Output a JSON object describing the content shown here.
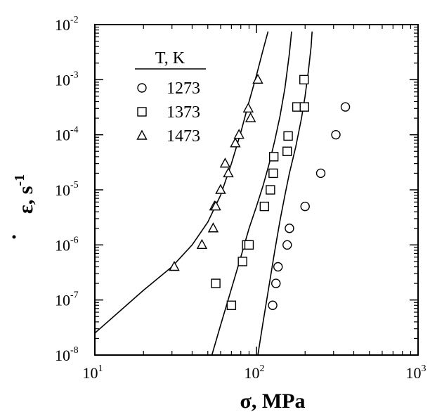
{
  "chart_data": {
    "type": "scatter",
    "x_scale": "log",
    "y_scale": "log",
    "xlim": [
      10,
      1000
    ],
    "ylim": [
      1e-08,
      0.01
    ],
    "x_ticks": [
      {
        "value": 10,
        "base": "10",
        "exp": "1"
      },
      {
        "value": 100,
        "base": "10",
        "exp": "2"
      },
      {
        "value": 1000,
        "base": "10",
        "exp": "3"
      }
    ],
    "y_ticks": [
      {
        "value": 1e-08,
        "base": "10",
        "exp": "-8"
      },
      {
        "value": 1e-07,
        "base": "10",
        "exp": "-7"
      },
      {
        "value": 1e-06,
        "base": "10",
        "exp": "-6"
      },
      {
        "value": 1e-05,
        "base": "10",
        "exp": "-5"
      },
      {
        "value": 0.0001,
        "base": "10",
        "exp": "-4"
      },
      {
        "value": 0.001,
        "base": "10",
        "exp": "-3"
      },
      {
        "value": 0.01,
        "base": "10",
        "exp": "-2"
      }
    ],
    "xlabel": {
      "symbol": "σ",
      "text": ", MPa"
    },
    "ylabel": {
      "symbol": "ε",
      "text": ", s",
      "exp": "-1"
    },
    "legend": {
      "title": "T, K",
      "position": "top-left"
    },
    "series": [
      {
        "name": "1273",
        "marker": "circle",
        "points": [
          [
            126,
            8e-08
          ],
          [
            132,
            2e-07
          ],
          [
            136,
            4e-07
          ],
          [
            155,
            1e-06
          ],
          [
            160,
            2e-06
          ],
          [
            200,
            5e-06
          ],
          [
            250,
            2e-05
          ],
          [
            310,
            0.0001
          ],
          [
            355,
            0.00032
          ]
        ]
      },
      {
        "name": "1373",
        "marker": "square",
        "points": [
          [
            56,
            2e-07
          ],
          [
            70,
            8e-08
          ],
          [
            82,
            5e-07
          ],
          [
            87,
            1e-06
          ],
          [
            90,
            1e-06
          ],
          [
            112,
            5e-06
          ],
          [
            122,
            1e-05
          ],
          [
            127,
            2e-05
          ],
          [
            128,
            4e-05
          ],
          [
            155,
            5e-05
          ],
          [
            157,
            9.5e-05
          ],
          [
            178,
            0.00032
          ],
          [
            198,
            0.00032
          ],
          [
            197,
            0.001
          ]
        ]
      },
      {
        "name": "1473",
        "marker": "triangle",
        "points": [
          [
            31,
            4e-07
          ],
          [
            46,
            1e-06
          ],
          [
            54,
            2e-06
          ],
          [
            55,
            5e-06
          ],
          [
            56,
            5e-06
          ],
          [
            60,
            1e-05
          ],
          [
            64,
            3e-05
          ],
          [
            67,
            2e-05
          ],
          [
            74,
            7e-05
          ],
          [
            78,
            0.0001
          ],
          [
            89,
            0.0003
          ],
          [
            92,
            0.0002
          ],
          [
            102,
            0.001
          ]
        ]
      }
    ],
    "fit_curves": [
      {
        "points": [
          [
            10,
            2.5e-08
          ],
          [
            20,
            1.5e-07
          ],
          [
            30,
            4e-07
          ],
          [
            40,
            1e-06
          ],
          [
            50,
            2.6e-06
          ],
          [
            60,
            8e-06
          ],
          [
            70,
            3e-05
          ],
          [
            80,
            0.00011
          ],
          [
            90,
            0.0004
          ],
          [
            100,
            0.0012
          ],
          [
            110,
            0.0035
          ],
          [
            118,
            0.0075
          ]
        ]
      },
      {
        "points": [
          [
            53,
            1e-08
          ],
          [
            60,
            3.5e-08
          ],
          [
            70,
            1.6e-07
          ],
          [
            80,
            6e-07
          ],
          [
            90,
            2e-06
          ],
          [
            100,
            5e-06
          ],
          [
            110,
            1.2e-05
          ],
          [
            120,
            3e-05
          ],
          [
            130,
            8e-05
          ],
          [
            140,
            0.00022
          ],
          [
            150,
            0.0007
          ],
          [
            160,
            0.003
          ],
          [
            165,
            0.0075
          ]
        ]
      },
      {
        "points": [
          [
            102,
            1e-08
          ],
          [
            110,
            4e-08
          ],
          [
            120,
            1.9e-07
          ],
          [
            130,
            8e-07
          ],
          [
            140,
            2.8e-06
          ],
          [
            150,
            8e-06
          ],
          [
            160,
            2e-05
          ],
          [
            175,
            6e-05
          ],
          [
            190,
            0.0002
          ],
          [
            200,
            0.0005
          ],
          [
            210,
            0.0015
          ],
          [
            218,
            0.004
          ],
          [
            221,
            0.0075
          ]
        ]
      }
    ]
  }
}
